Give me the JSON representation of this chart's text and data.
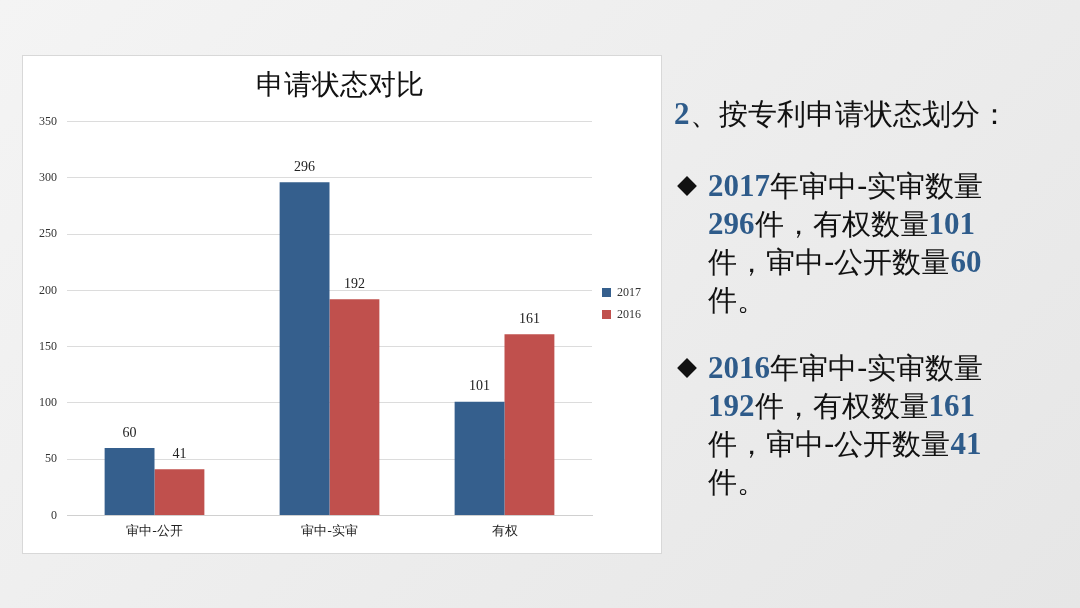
{
  "chart_data": {
    "type": "bar",
    "title": "申请状态对比",
    "categories": [
      "审中-公开",
      "审中-实审",
      "有权"
    ],
    "series": [
      {
        "name": "2017",
        "color": "#355f8d",
        "values": [
          60,
          296,
          101
        ]
      },
      {
        "name": "2016",
        "color": "#c0504d",
        "values": [
          41,
          192,
          161
        ]
      }
    ],
    "ylim": [
      0,
      350
    ],
    "yticks": [
      0,
      50,
      100,
      150,
      200,
      250,
      300,
      350
    ],
    "grid": "y",
    "legend": "right",
    "data_labels": true,
    "annotations": [
      "2、按专利申请状态划分：",
      "2017年审中-实审数量296件，有权数量101件，审中-公开数量60件。",
      "2016年审中-实审数量192件，有权数量161件，审中-公开数量41件。"
    ]
  }
}
